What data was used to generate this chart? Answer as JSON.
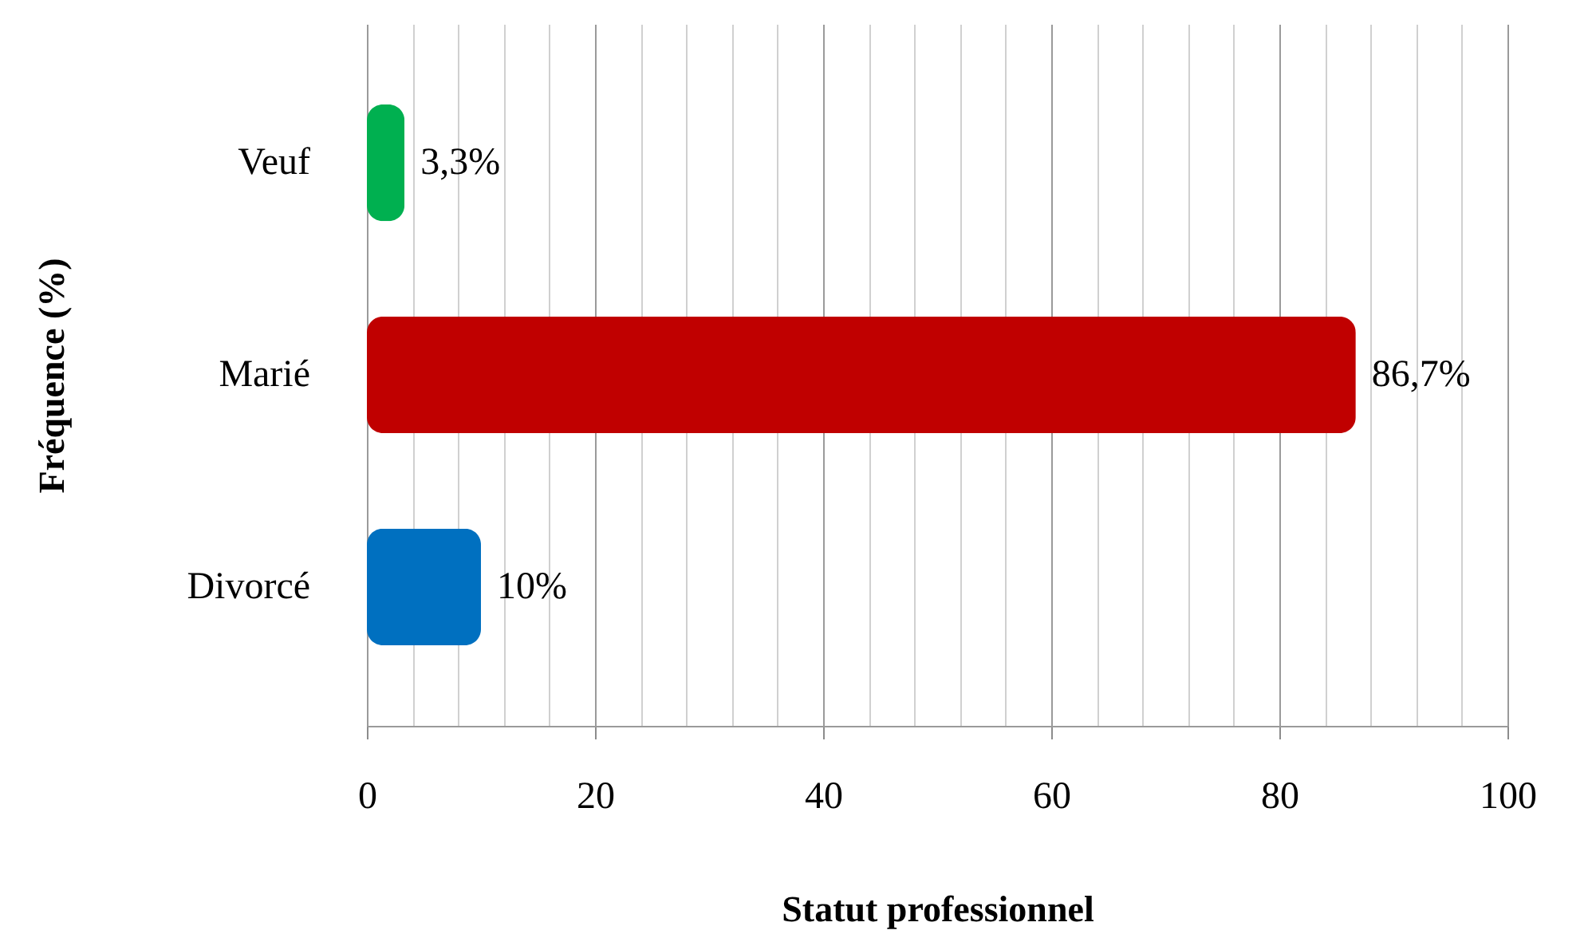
{
  "chart_data": {
    "type": "bar",
    "orientation": "horizontal",
    "categories": [
      "Veuf",
      "Marié",
      "Divorcé"
    ],
    "values": [
      3.3,
      86.7,
      10
    ],
    "colors": [
      "#00b050",
      "#c00000",
      "#0070c0"
    ],
    "value_labels": [
      "3,3%",
      "86,7%",
      "10%"
    ],
    "xlabel": "Statut professionnel",
    "ylabel": "Fréquence (%)",
    "xlim": [
      0,
      100
    ],
    "xticks": [
      0,
      {
        "value": 4,
        "label": null
      },
      {
        "value": 8,
        "label": null
      },
      {
        "value": 12,
        "label": null
      },
      {
        "value": 16,
        "label": null
      },
      20,
      {
        "value": 24,
        "label": null
      },
      {
        "value": 28,
        "label": null
      },
      {
        "value": 32,
        "label": null
      },
      {
        "value": 36,
        "label": null
      },
      40,
      {
        "value": 44,
        "label": null
      },
      {
        "value": 48,
        "label": null
      },
      {
        "value": 52,
        "label": null
      },
      {
        "value": 56,
        "label": null
      },
      60,
      {
        "value": 64,
        "label": null
      },
      {
        "value": 68,
        "label": null
      },
      {
        "value": 72,
        "label": null
      },
      {
        "value": 76,
        "label": null
      },
      80,
      {
        "value": 84,
        "label": null
      },
      {
        "value": 88,
        "label": null
      },
      {
        "value": 92,
        "label": null
      },
      {
        "value": 96,
        "label": null
      },
      100
    ],
    "grid": "x"
  }
}
